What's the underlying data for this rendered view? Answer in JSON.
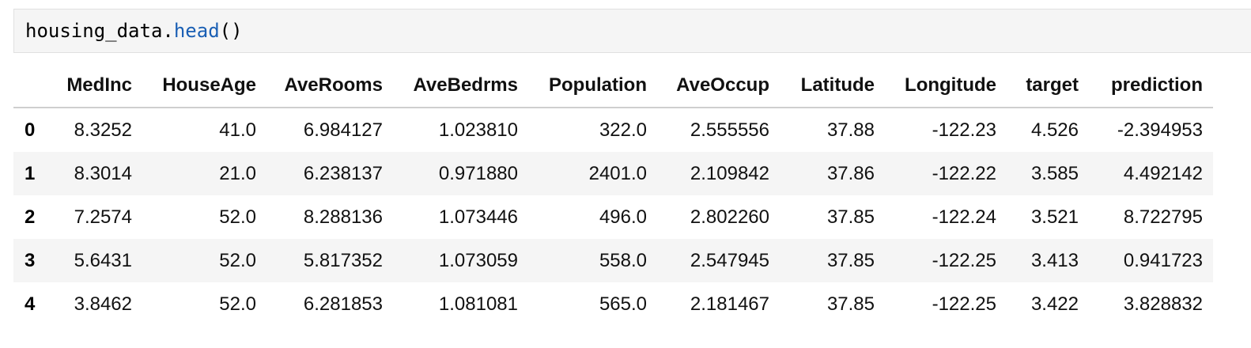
{
  "code_cell": {
    "object": "housing_data",
    "dot": ".",
    "method": "head",
    "parens": "()"
  },
  "table": {
    "columns": [
      "MedInc",
      "HouseAge",
      "AveRooms",
      "AveBedrms",
      "Population",
      "AveOccup",
      "Latitude",
      "Longitude",
      "target",
      "prediction"
    ],
    "rows": [
      {
        "index": "0",
        "cells": [
          "8.3252",
          "41.0",
          "6.984127",
          "1.023810",
          "322.0",
          "2.555556",
          "37.88",
          "-122.23",
          "4.526",
          "-2.394953"
        ]
      },
      {
        "index": "1",
        "cells": [
          "8.3014",
          "21.0",
          "6.238137",
          "0.971880",
          "2401.0",
          "2.109842",
          "37.86",
          "-122.22",
          "3.585",
          "4.492142"
        ]
      },
      {
        "index": "2",
        "cells": [
          "7.2574",
          "52.0",
          "8.288136",
          "1.073446",
          "496.0",
          "2.802260",
          "37.85",
          "-122.24",
          "3.521",
          "8.722795"
        ]
      },
      {
        "index": "3",
        "cells": [
          "5.6431",
          "52.0",
          "5.817352",
          "1.073059",
          "558.0",
          "2.547945",
          "37.85",
          "-122.25",
          "3.413",
          "0.941723"
        ]
      },
      {
        "index": "4",
        "cells": [
          "3.8462",
          "52.0",
          "6.281853",
          "1.081081",
          "565.0",
          "2.181467",
          "37.85",
          "-122.25",
          "3.422",
          "3.828832"
        ]
      }
    ]
  }
}
